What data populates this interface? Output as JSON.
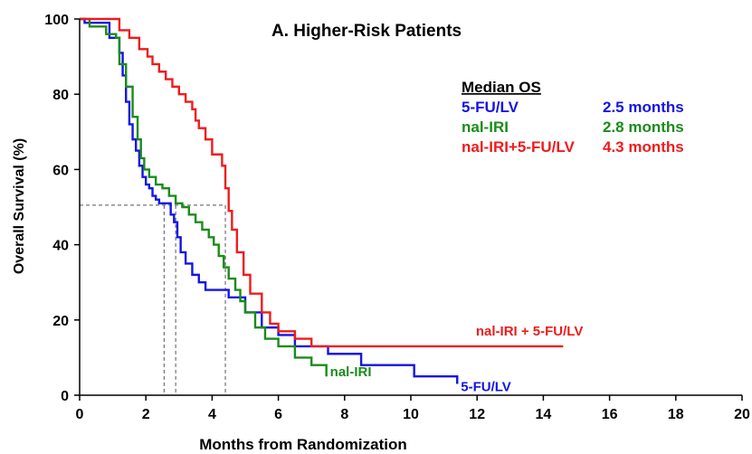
{
  "chart_data": {
    "type": "line",
    "step": true,
    "title": "A.  Higher-Risk Patients",
    "xlabel": "Months from Randomization",
    "ylabel": "Overall Survival (%)",
    "xlim": [
      0,
      20
    ],
    "ylim": [
      0,
      100
    ],
    "xticks": [
      0,
      2,
      4,
      6,
      8,
      10,
      12,
      14,
      16,
      18,
      20
    ],
    "yticks": [
      0,
      20,
      40,
      60,
      80,
      100
    ],
    "grid": false,
    "median_table": {
      "header": "Median OS",
      "rows": [
        {
          "name": "5-FU/LV",
          "value": "2.5 months",
          "color": "#1414e6"
        },
        {
          "name": "nal-IRI",
          "value": "2.8 months",
          "color": "#1a8c1a"
        },
        {
          "name": "nal-IRI+5-FU/LV",
          "value": "4.3 months",
          "color": "#ee1c1c"
        }
      ]
    },
    "median_reference": {
      "y": 50.5,
      "x_values": [
        2.55,
        2.9,
        4.4
      ]
    },
    "series": [
      {
        "name": "5-FU/LV",
        "end_label": "5-FU/LV",
        "color": "#1414e6",
        "x": [
          0,
          0.15,
          0.9,
          1.2,
          1.3,
          1.4,
          1.5,
          1.6,
          1.7,
          1.8,
          1.9,
          2.0,
          2.1,
          2.2,
          2.3,
          2.4,
          2.5,
          2.75,
          2.85,
          2.95,
          3.05,
          3.2,
          3.4,
          3.6,
          3.8,
          4.0,
          4.5,
          5.0,
          5.5,
          6.0,
          6.5,
          7.5,
          8.5,
          10.1,
          11.4
        ],
        "y": [
          100,
          99,
          95,
          91,
          85,
          78,
          72,
          68,
          65,
          61,
          58,
          56,
          55,
          53,
          52,
          51,
          51,
          48,
          46,
          42,
          38,
          35,
          32,
          30,
          28,
          28,
          26,
          22,
          18,
          16,
          13,
          11,
          8,
          5,
          3
        ]
      },
      {
        "name": "nal-IRI",
        "end_label": "nal-IRI",
        "color": "#1a8c1a",
        "x": [
          0,
          0.3,
          0.8,
          1.1,
          1.2,
          1.4,
          1.6,
          1.75,
          1.85,
          1.95,
          2.1,
          2.3,
          2.5,
          2.7,
          2.9,
          3.1,
          3.3,
          3.5,
          3.7,
          3.9,
          4.05,
          4.2,
          4.35,
          4.5,
          4.7,
          4.85,
          5.0,
          5.3,
          5.6,
          6.0,
          6.5,
          7.0,
          7.45
        ],
        "y": [
          100,
          98,
          96,
          95,
          88,
          82,
          74,
          68,
          63,
          60,
          58,
          56,
          55,
          53,
          51,
          50,
          48,
          46,
          44,
          42,
          40,
          37,
          34,
          31,
          28,
          25,
          22,
          18,
          15,
          13,
          10,
          8,
          5
        ]
      },
      {
        "name": "nal-IRI+5-FU/LV",
        "end_label": "nal-IRI + 5-FU/LV",
        "color": "#ee1c1c",
        "x": [
          0,
          1.2,
          1.5,
          1.8,
          2.05,
          2.2,
          2.4,
          2.6,
          2.8,
          3.0,
          3.2,
          3.4,
          3.5,
          3.6,
          3.8,
          4.0,
          4.3,
          4.4,
          4.5,
          4.6,
          4.75,
          4.95,
          5.15,
          5.5,
          5.75,
          6.0,
          6.5,
          7.0,
          14.6
        ],
        "y": [
          100,
          97,
          95,
          92,
          90,
          88,
          86,
          84,
          82,
          80,
          78,
          76,
          73,
          71,
          68,
          64,
          61,
          55,
          49,
          44,
          38,
          32,
          27,
          22,
          19,
          17,
          15,
          13,
          13
        ]
      }
    ]
  }
}
